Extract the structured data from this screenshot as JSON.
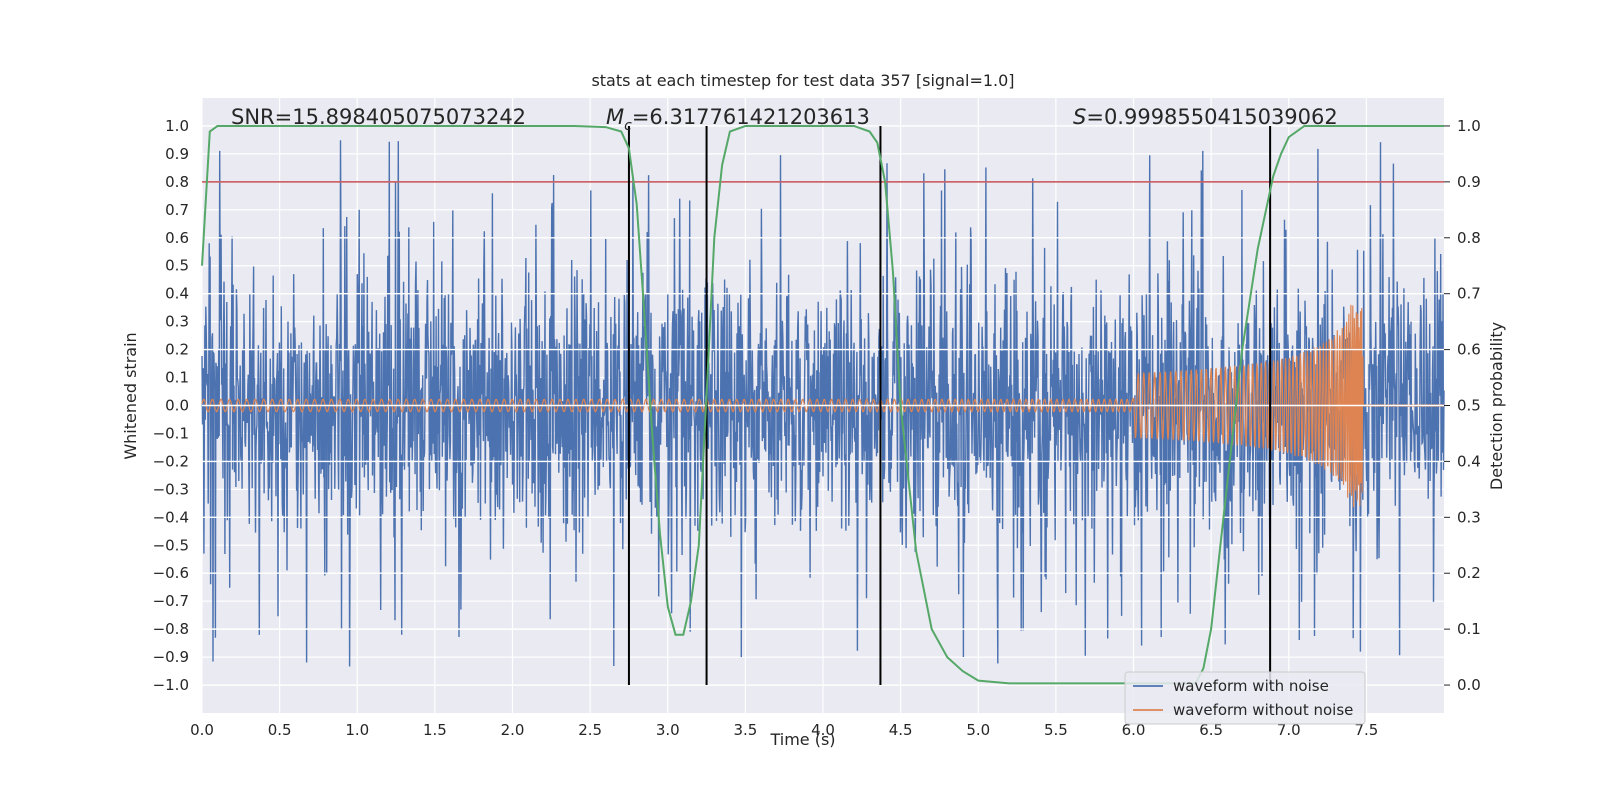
{
  "chart_data": {
    "type": "line",
    "title": "stats at each timestep for test data 357 [signal=1.0]",
    "xlabel": "Time (s)",
    "ylabel_left": "Whitened strain",
    "ylabel_right": "Detection probability",
    "xlim": [
      0.0,
      8.0
    ],
    "ylim_left": [
      -1.1,
      1.1
    ],
    "ylim_right": [
      -0.05,
      1.05
    ],
    "x_ticks": [
      "0.0",
      "0.5",
      "1.0",
      "1.5",
      "2.0",
      "2.5",
      "3.0",
      "3.5",
      "4.0",
      "4.5",
      "5.0",
      "5.5",
      "6.0",
      "6.5",
      "7.0",
      "7.5"
    ],
    "y_ticks_left": [
      "1.0",
      "0.9",
      "0.8",
      "0.7",
      "0.6",
      "0.5",
      "0.4",
      "0.3",
      "0.2",
      "0.1",
      "0.0",
      "−0.1",
      "−0.2",
      "−0.3",
      "−0.4",
      "−0.5",
      "−0.6",
      "−0.7",
      "−0.8",
      "−0.9",
      "−1.0"
    ],
    "y_ticks_right": [
      "1.0",
      "0.9",
      "0.8",
      "0.7",
      "0.6",
      "0.5",
      "0.4",
      "0.3",
      "0.2",
      "0.1",
      "0.0"
    ],
    "annotations": {
      "snr": "SNR=15.898405075073242",
      "mc": "=6.317761421203613",
      "mc_symbol": "M",
      "mc_sub": "c",
      "s": "=0.9998550415039062",
      "s_symbol": "S"
    },
    "threshold": 0.9,
    "vlines": [
      2.75,
      3.25,
      4.37,
      6.88
    ],
    "noise_envelope": {
      "amplitude_typical": 0.55,
      "amplitude_max": 0.95,
      "min_value": -1.0
    },
    "signal_waveform": {
      "start_amplitude": 0.02,
      "peak_amplitude": 0.37,
      "merger_time": 7.48,
      "end_time": 8.0
    },
    "series": [
      {
        "name": "waveform with noise",
        "color": "#4c72b0"
      },
      {
        "name": "waveform without noise",
        "color": "#dd8452"
      },
      {
        "name": "detection probability",
        "color": "#55a868",
        "x": [
          0.0,
          0.05,
          0.1,
          0.2,
          0.5,
          1.0,
          1.5,
          2.0,
          2.4,
          2.6,
          2.7,
          2.75,
          2.8,
          2.85,
          2.9,
          2.95,
          3.0,
          3.05,
          3.1,
          3.15,
          3.2,
          3.25,
          3.3,
          3.35,
          3.4,
          3.5,
          3.8,
          4.0,
          4.2,
          4.3,
          4.35,
          4.4,
          4.45,
          4.5,
          4.6,
          4.7,
          4.8,
          4.9,
          5.0,
          5.2,
          5.5,
          6.0,
          6.3,
          6.4,
          6.45,
          6.5,
          6.6,
          6.7,
          6.8,
          6.9,
          6.95,
          7.0,
          7.1,
          7.3,
          8.0
        ],
        "y": [
          0.75,
          0.99,
          1.0,
          1.0,
          1.0,
          1.0,
          1.0,
          1.0,
          1.0,
          0.998,
          0.99,
          0.96,
          0.86,
          0.66,
          0.45,
          0.27,
          0.14,
          0.09,
          0.09,
          0.15,
          0.25,
          0.52,
          0.8,
          0.93,
          0.99,
          1.0,
          1.0,
          1.0,
          1.0,
          0.99,
          0.97,
          0.9,
          0.74,
          0.5,
          0.24,
          0.1,
          0.05,
          0.025,
          0.008,
          0.003,
          0.003,
          0.003,
          0.003,
          0.003,
          0.03,
          0.1,
          0.35,
          0.6,
          0.78,
          0.91,
          0.95,
          0.98,
          1.0,
          1.0,
          1.0
        ]
      },
      {
        "name": "threshold",
        "color": "#c44e52"
      }
    ],
    "legend_location": "lower-right",
    "grid": true
  }
}
